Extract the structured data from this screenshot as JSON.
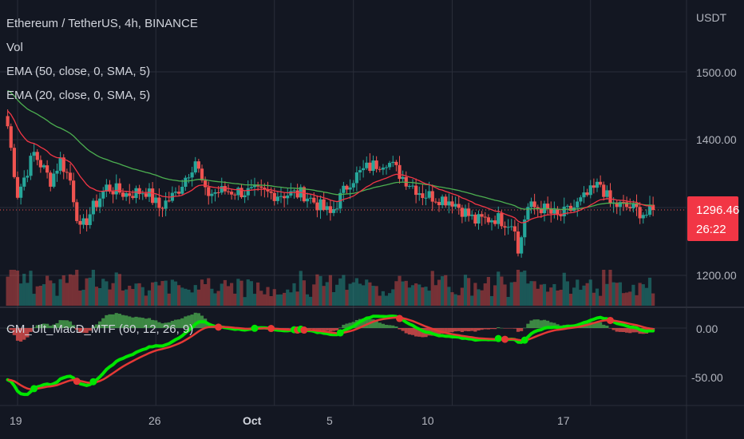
{
  "header": {
    "title": "Ethereum / TetherUS, 4h, BINANCE",
    "indicators": [
      "Vol",
      "EMA (50, close, 0, SMA, 5)",
      "EMA (20, close, 0, SMA, 5)"
    ],
    "macd_label": "CM_Ult_MacD_MTF (60, 12, 26, 9)"
  },
  "price_axis": {
    "currency": "USDT",
    "labels": [
      "1500.00",
      "1400.00",
      "1200.00"
    ],
    "macd_labels": [
      "0.00",
      "-50.00"
    ]
  },
  "price_tag": {
    "price": "1296.46",
    "countdown": "26:22"
  },
  "time_axis": {
    "labels": [
      "19",
      "26",
      "Oct",
      "5",
      "10",
      "17"
    ]
  },
  "colors": {
    "up": "#26a69a",
    "down": "#ef5350",
    "ema50": "#4caf50",
    "ema20": "#f23645",
    "background": "#131722",
    "grid": "#2a2e39"
  },
  "chart_data": {
    "type": "candlestick",
    "timeframe": "4h",
    "ylim": [
      1155,
      1620
    ],
    "macd_ylim": [
      -95,
      30
    ],
    "x": [
      "Sep 19",
      "Sep 26",
      "Oct 1",
      "Oct 5",
      "Oct 10",
      "Oct 17"
    ],
    "anchors": [
      {
        "date": "Sep 18 12:00",
        "close": 1420
      },
      {
        "date": "Sep 19 00:00",
        "close": 1320
      },
      {
        "date": "Sep 19 20:00",
        "close": 1380
      },
      {
        "date": "Sep 20 16:00",
        "close": 1340
      },
      {
        "date": "Sep 21 04:00",
        "close": 1370
      },
      {
        "date": "Sep 21 16:00",
        "close": 1340
      },
      {
        "date": "Sep 22 04:00",
        "close": 1265
      },
      {
        "date": "Sep 22 20:00",
        "close": 1300
      },
      {
        "date": "Sep 23 12:00",
        "close": 1330
      },
      {
        "date": "Sep 24 12:00",
        "close": 1320
      },
      {
        "date": "Sep 25 12:00",
        "close": 1325
      },
      {
        "date": "Sep 26 04:00",
        "close": 1300
      },
      {
        "date": "Sep 27 00:00",
        "close": 1320
      },
      {
        "date": "Sep 28 00:00",
        "close": 1370
      },
      {
        "date": "Sep 28 12:00",
        "close": 1320
      },
      {
        "date": "Sep 29 12:00",
        "close": 1325
      },
      {
        "date": "Oct 1 00:00",
        "close": 1320
      },
      {
        "date": "Oct 2 12:00",
        "close": 1320
      },
      {
        "date": "Oct 3 20:00",
        "close": 1290
      },
      {
        "date": "Oct 4 20:00",
        "close": 1340
      },
      {
        "date": "Oct 5 16:00",
        "close": 1358
      },
      {
        "date": "Oct 6 16:00",
        "close": 1370
      },
      {
        "date": "Oct 7 12:00",
        "close": 1345
      },
      {
        "date": "Oct 8 12:00",
        "close": 1320
      },
      {
        "date": "Oct 10 00:00",
        "close": 1310
      },
      {
        "date": "Oct 11 04:00",
        "close": 1280
      },
      {
        "date": "Oct 12 04:00",
        "close": 1285
      },
      {
        "date": "Oct 13 04:00",
        "close": 1275
      },
      {
        "date": "Oct 13 08:00",
        "close": 1230
      },
      {
        "date": "Oct 13 16:00",
        "close": 1285
      },
      {
        "date": "Oct 13 20:00",
        "close": 1300
      },
      {
        "date": "Oct 14 12:00",
        "close": 1300
      },
      {
        "date": "Oct 15 08:00",
        "close": 1285
      },
      {
        "date": "Oct 16 04:00",
        "close": 1300
      },
      {
        "date": "Oct 17 12:00",
        "close": 1335
      },
      {
        "date": "Oct 18 00:00",
        "close": 1305
      },
      {
        "date": "Oct 19 00:00",
        "close": 1300
      },
      {
        "date": "Oct 19 20:00",
        "close": 1290
      },
      {
        "date": "Oct 20 04:00",
        "close": 1296.46
      }
    ],
    "last_close": 1296.46
  }
}
